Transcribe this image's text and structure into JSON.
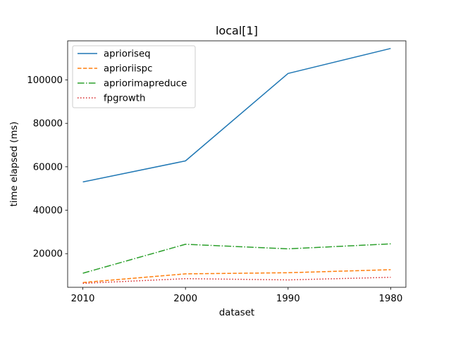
{
  "chart_data": {
    "type": "line",
    "title": "local[1]",
    "xlabel": "dataset",
    "ylabel": "time elapsed (ms)",
    "categories": [
      "2010",
      "2000",
      "1990",
      "1980"
    ],
    "yticks": [
      20000,
      40000,
      60000,
      80000,
      100000
    ],
    "ylim": [
      4500,
      118000
    ],
    "grid": false,
    "legend_position": "top-left",
    "series": [
      {
        "name": "aprioriseq",
        "values": [
          53000,
          62700,
          103000,
          114500
        ],
        "color": "#1f77b4",
        "style": "solid"
      },
      {
        "name": "aprioriispc",
        "values": [
          6700,
          10700,
          11200,
          12600
        ],
        "color": "#ff7f0e",
        "style": "dashed"
      },
      {
        "name": "apriorimapreduce",
        "values": [
          11000,
          24300,
          22200,
          24500
        ],
        "color": "#2ca02c",
        "style": "dashdot"
      },
      {
        "name": "fpgrowth",
        "values": [
          6300,
          8500,
          7900,
          9100
        ],
        "color": "#d62728",
        "style": "dotted"
      }
    ]
  }
}
